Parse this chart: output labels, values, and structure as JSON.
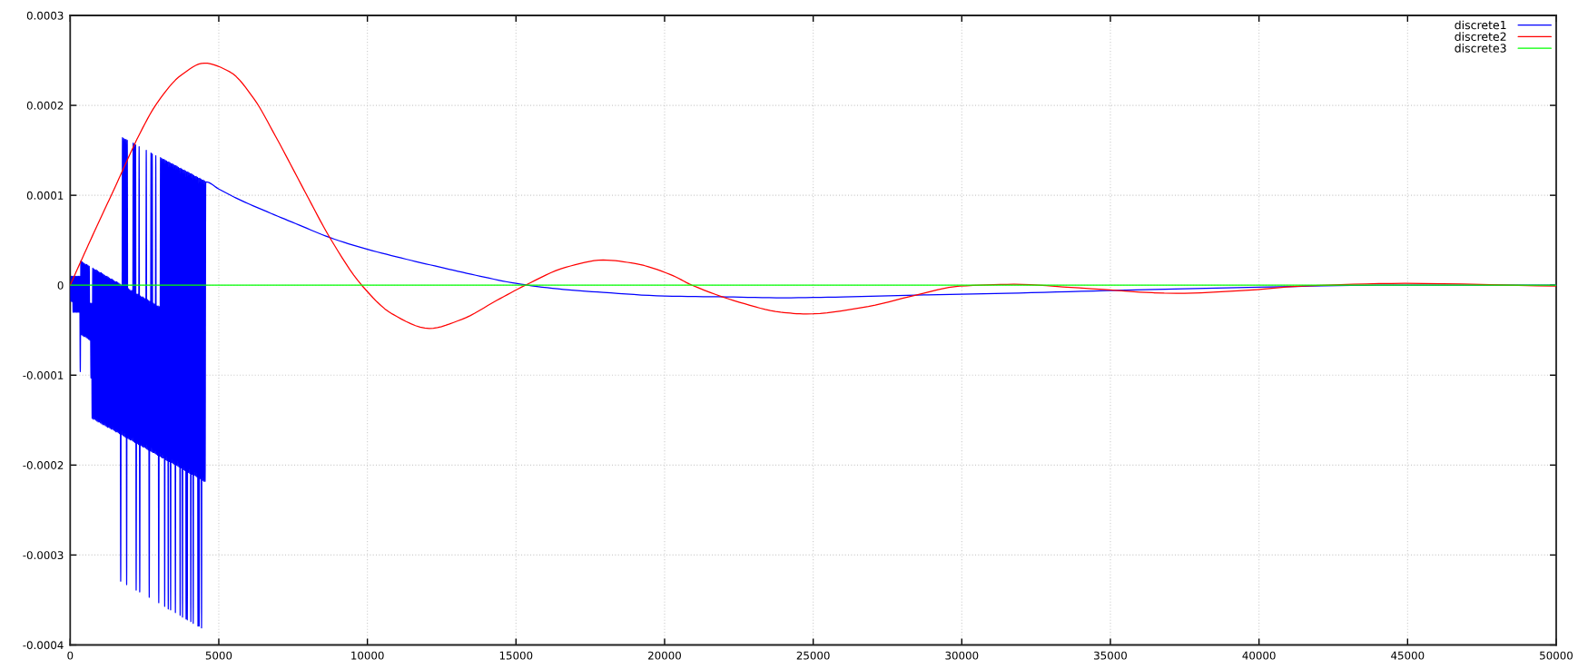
{
  "chart_data": {
    "type": "line",
    "xlim": [
      0,
      50000
    ],
    "ylim": [
      -0.0004,
      0.0003
    ],
    "xticks": [
      0,
      5000,
      10000,
      15000,
      20000,
      25000,
      30000,
      35000,
      40000,
      45000,
      50000
    ],
    "yticks": [
      -0.0004,
      -0.0003,
      -0.0002,
      -0.0001,
      0,
      0.0001,
      0.0002,
      0.0003
    ],
    "grid": true,
    "legend": "top right",
    "series": [
      {
        "name": "discrete1",
        "color": "#0000ff",
        "x": [
          0,
          20,
          40,
          60,
          80,
          100,
          120,
          140,
          160,
          180,
          200,
          220,
          240,
          260,
          280,
          300,
          320,
          340,
          360,
          380,
          400,
          420,
          440,
          460,
          480,
          500,
          520,
          540,
          560,
          580,
          600,
          620,
          640,
          660,
          680,
          700,
          720,
          740,
          760,
          780,
          800,
          820,
          840,
          860,
          880,
          900,
          920,
          940,
          960,
          980,
          1000,
          1020,
          1040,
          1060,
          1080,
          1100,
          1120,
          1140,
          1160,
          1180,
          1200,
          1220,
          1240,
          1260,
          1280,
          1300,
          1320,
          1340,
          1360,
          1380,
          1400,
          1420,
          1440,
          1460,
          1480,
          1500,
          1520,
          1540,
          1560,
          1580,
          1600,
          1620,
          1640,
          1660,
          1680,
          1700,
          1720,
          1740,
          1760,
          1780,
          1800,
          1820,
          1840,
          1860,
          1880,
          1900,
          1920,
          1940,
          1960,
          1980,
          2000,
          2020,
          2040,
          2060,
          2080,
          2100,
          2120,
          2140,
          2160,
          2180,
          2200,
          2220,
          2240,
          2260,
          2280,
          2300,
          2320,
          2340,
          2360,
          2380,
          2400,
          2420,
          2440,
          2460,
          2480,
          2500,
          2520,
          2540,
          2560,
          2580,
          2600,
          2620,
          2640,
          2660,
          2680,
          2700,
          2720,
          2740,
          2760,
          2780,
          2800,
          2820,
          2840,
          2860,
          2880,
          2900,
          2920,
          2940,
          2960,
          2980,
          3000,
          3020,
          3040,
          3060,
          3080,
          3100,
          3120,
          3140,
          3160,
          3180,
          3200,
          3220,
          3240,
          3260,
          3280,
          3300,
          3320,
          3340,
          3360,
          3380,
          3400,
          3420,
          3440,
          3460,
          3480,
          3500,
          3520,
          3540,
          3560,
          3580,
          3600,
          3620,
          3640,
          3660,
          3680,
          3700,
          3720,
          3740,
          3760,
          3780,
          3800,
          3820,
          3840,
          3860,
          3880,
          3900,
          3920,
          3940,
          3960,
          3980,
          4000,
          4020,
          4040,
          4060,
          4080,
          4100,
          4120,
          4140,
          4160,
          4180,
          4200,
          4220,
          4240,
          4260,
          4280,
          4300,
          4320,
          4340,
          4360,
          4380,
          4400,
          4420,
          4440,
          4460,
          4480,
          4500,
          4520,
          4540,
          4560,
          5000,
          5580,
          6750,
          7700,
          8735,
          10000,
          11300,
          12590,
          13800,
          15000,
          16400,
          17933,
          20000,
          22080,
          24000,
          26000,
          28460,
          31500,
          34860,
          37500,
          40330,
          44000,
          50000
        ],
        "values": [
          0,
          -1.8e-05,
          1e-05,
          -1.8e-05,
          1e-05,
          -3e-05,
          1e-05,
          -3e-05,
          1e-05,
          -3e-05,
          1e-05,
          -3e-05,
          1e-05,
          -3e-05,
          1e-05,
          -3e-05,
          1e-05,
          -9.6e-05,
          2.7e-05,
          -5.5e-05,
          2.6e-05,
          -5.6e-05,
          2.5e-05,
          -5.7e-05,
          2.4e-05,
          -5.7e-05,
          2.3e-05,
          -5.8e-05,
          2.3e-05,
          -5.9e-05,
          2.2e-05,
          -6e-05,
          2.1e-05,
          -6.1e-05,
          -2e-05,
          -0.000103,
          -2e-05,
          -0.000148,
          1.9e-05,
          -0.000149,
          1.8e-05,
          -0.000149,
          1.7e-05,
          -0.00015,
          1.7e-05,
          -0.000151,
          1.6e-05,
          -0.000152,
          1.5e-05,
          -0.000152,
          1.4e-05,
          -0.000153,
          1.4e-05,
          -0.000154,
          1.3e-05,
          -0.000155,
          1.2e-05,
          -0.000155,
          1.1e-05,
          -0.000156,
          1e-05,
          -0.000157,
          1e-05,
          -0.000158,
          9e-06,
          -0.000158,
          8e-06,
          -0.000159,
          7e-06,
          -0.00016,
          7e-06,
          -0.00016,
          6e-06,
          -0.000161,
          5e-06,
          -0.000162,
          4e-06,
          -0.000163,
          4e-06,
          -0.000163,
          3e-06,
          -0.000164,
          2e-06,
          -0.000165,
          1e-06,
          -0.000329,
          0,
          -0.000166,
          0.000164,
          -0.000167,
          0.000163,
          -0.000168,
          0.000162,
          -0.000169,
          0.000162,
          -0.000333,
          0.000161,
          -0.00017,
          -4e-06,
          -0.000171,
          -5e-06,
          -0.000172,
          -6e-06,
          -0.000172,
          -6e-06,
          -0.000173,
          0.000158,
          -0.000174,
          0.000157,
          -0.000175,
          0.000156,
          -0.000339,
          -1e-05,
          -0.000176,
          -1e-05,
          -0.000177,
          0.000154,
          -0.000341,
          -1.2e-05,
          -0.000178,
          -1.3e-05,
          -0.000179,
          -1.3e-05,
          -0.00018,
          -1.4e-05,
          -0.00018,
          -1.5e-05,
          -0.000181,
          0.00015,
          -0.000182,
          -1.6e-05,
          -0.000183,
          -1.7e-05,
          -0.000347,
          -1.8e-05,
          -0.000184,
          0.000147,
          -0.000185,
          0.000146,
          -0.000186,
          -2e-05,
          -0.000186,
          -2.1e-05,
          -0.000187,
          0.000144,
          -0.000188,
          -2.3e-05,
          -0.000189,
          -2.3e-05,
          -0.000353,
          -2.4e-05,
          -0.00019,
          0.000142,
          -0.000191,
          0.000141,
          -0.000192,
          0.00014,
          -0.000192,
          0.00014,
          -0.000357,
          0.000139,
          -0.000194,
          0.000138,
          -0.000195,
          0.000137,
          -0.00036,
          0.000137,
          -0.000196,
          0.000136,
          -0.000361,
          0.000135,
          -0.000197,
          0.000135,
          -0.000198,
          0.000134,
          -0.000199,
          0.000133,
          -0.000364,
          0.000133,
          -0.0002,
          0.000132,
          -0.000201,
          0.000131,
          -0.000202,
          0.00013,
          -0.000367,
          0.00013,
          -0.000203,
          0.000129,
          -0.000369,
          0.000128,
          -0.000205,
          0.000128,
          -0.000206,
          0.000127,
          -0.000371,
          0.000126,
          -0.000372,
          0.000126,
          -0.000208,
          0.000125,
          -0.000209,
          0.000124,
          -0.000374,
          0.000124,
          -0.00021,
          0.000123,
          -0.000376,
          0.000122,
          -0.000211,
          0.000121,
          -0.000212,
          0.000121,
          -0.000213,
          0.00012,
          -0.000379,
          0.000119,
          -0.000379,
          0.000119,
          -0.000215,
          0.000118,
          -0.000381,
          0.000117,
          -0.000217,
          0.000117,
          -0.000218,
          0.000116,
          -0.000218,
          0.000115,
          0.000107,
          9.7e-05,
          8e-05,
          6.7e-05,
          5.3e-05,
          4e-05,
          2.9e-05,
          1.9e-05,
          1e-05,
          2e-06,
          -4e-06,
          -8e-06,
          -1.2e-05,
          -1.3e-05,
          -1.4e-05,
          -1.3e-05,
          -1.1e-05,
          -9e-06,
          -6e-06,
          -4e-06,
          -2e-06,
          0,
          0
        ]
      },
      {
        "name": "discrete2",
        "color": "#ff0000",
        "x": [
          0,
          489,
          1000,
          1509,
          2016,
          2272,
          2932,
          3747,
          4511,
          5384,
          6190,
          6903,
          7916,
          8735,
          9810,
          10840,
          12085,
          13175,
          14346,
          15315,
          16681,
          17933,
          19017,
          20187,
          20926,
          22527,
          23904,
          24770,
          26630,
          28460,
          29930,
          31750,
          33950,
          37220,
          39420,
          41440,
          44900,
          50000
        ],
        "values": [
          0,
          3.6e-05,
          7.3e-05,
          0.000109,
          0.000146,
          0.000164,
          0.000203,
          0.000234,
          0.000247,
          0.000237,
          0.000207,
          0.000166,
          0.000103,
          5.3e-05,
          0,
          -3.2e-05,
          -4.8e-05,
          -3.8e-05,
          -1.7e-05,
          0,
          2e-05,
          2.8e-05,
          2.4e-05,
          1.2e-05,
          0,
          -1.9e-05,
          -3e-05,
          -3.2e-05,
          -2.5e-05,
          -1.1e-05,
          -1e-06,
          1e-06,
          -3e-06,
          -9e-06,
          -6e-06,
          -1e-06,
          2e-06,
          -1e-06
        ]
      },
      {
        "name": "discrete3",
        "color": "#00ff00",
        "x": [
          0,
          50000
        ],
        "values": [
          0,
          0
        ]
      }
    ]
  }
}
